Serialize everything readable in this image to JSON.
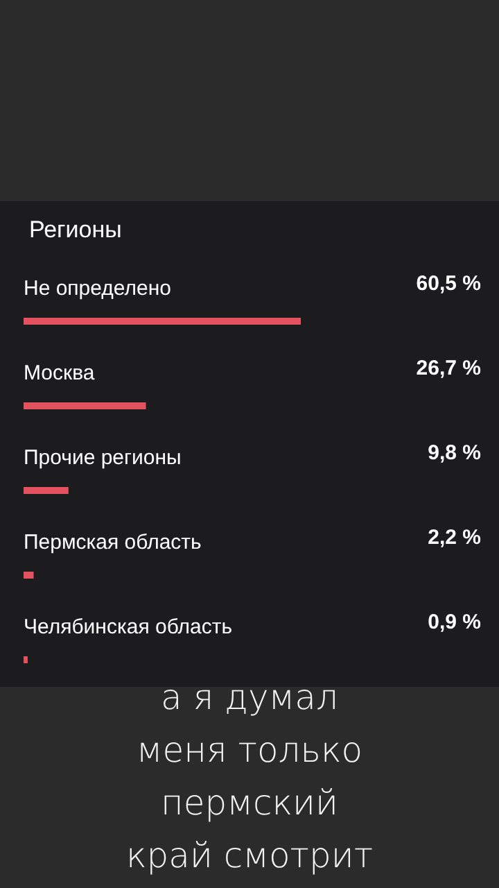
{
  "chart_data": {
    "type": "bar",
    "orientation": "horizontal",
    "title": "Регионы",
    "categories": [
      "Не определено",
      "Москва",
      "Прочие регионы",
      "Пермская область",
      "Челябинская область"
    ],
    "values": [
      60.5,
      26.7,
      9.8,
      2.2,
      0.9
    ],
    "value_labels": [
      "60,5 %",
      "26,7 %",
      "9,8 %",
      "2,2 %",
      "0,9 %"
    ],
    "color": "#e4525f",
    "tick_labels": "y",
    "annotations": [
      "а я думал\nменя только\nпермский\nкрай смотрит"
    ]
  }
}
